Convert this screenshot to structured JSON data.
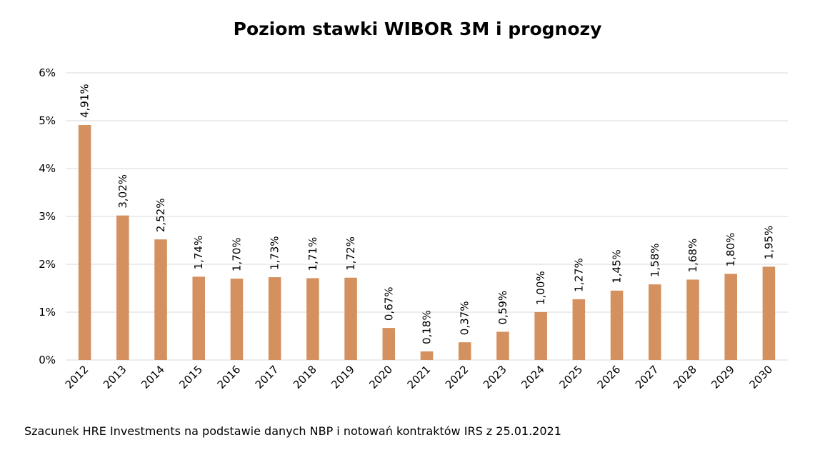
{
  "chart_data": {
    "type": "bar",
    "title": "Poziom stawki WIBOR 3M i prognozy",
    "categories": [
      "2012",
      "2013",
      "2014",
      "2015",
      "2016",
      "2017",
      "2018",
      "2019",
      "2020",
      "2021",
      "2022",
      "2023",
      "2024",
      "2025",
      "2026",
      "2027",
      "2028",
      "2029",
      "2030"
    ],
    "values": [
      4.91,
      3.02,
      2.52,
      1.74,
      1.7,
      1.73,
      1.71,
      1.72,
      0.67,
      0.18,
      0.37,
      0.59,
      1.0,
      1.27,
      1.45,
      1.58,
      1.68,
      1.8,
      1.95
    ],
    "data_labels": [
      "4,91%",
      "3,02%",
      "2,52%",
      "1,74%",
      "1,70%",
      "1,73%",
      "1,71%",
      "1,72%",
      "0,67%",
      "0,18%",
      "0,37%",
      "0,59%",
      "1,00%",
      "1,27%",
      "1,45%",
      "1,58%",
      "1,68%",
      "1,80%",
      "1,95%"
    ],
    "y_ticks": [
      0,
      1,
      2,
      3,
      4,
      5,
      6
    ],
    "y_tick_labels": [
      "0%",
      "1%",
      "2%",
      "3%",
      "4%",
      "5%",
      "6%"
    ],
    "ylim": [
      0,
      6
    ],
    "xlabel": "",
    "ylabel": "",
    "grid": true,
    "legend": "none",
    "bar_color": "#D4915F",
    "grid_color": "#D9D9D9"
  },
  "source_note": "Szacunek HRE Investments na podstawie danych NBP i notowań kontraktów IRS z 25.01.2021"
}
